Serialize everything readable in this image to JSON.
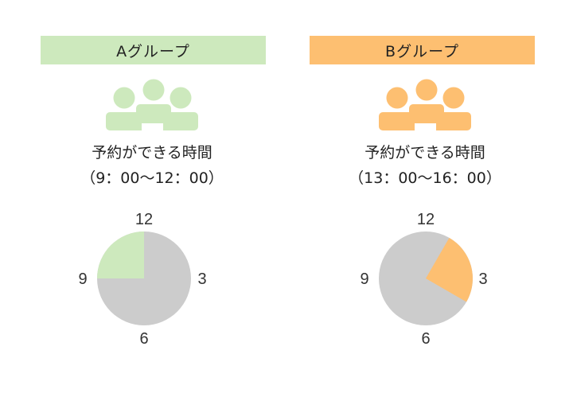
{
  "groups": [
    {
      "title": "Aグループ",
      "color": "#cde9bd",
      "icon": "people-group-icon",
      "caption": "予約ができる時間",
      "time_range": "（9：00～12：00）",
      "clock": {
        "labels": [
          "12",
          "3",
          "6",
          "9"
        ],
        "highlight_start_hour": 9,
        "highlight_end_hour": 12
      }
    },
    {
      "title": "Bグループ",
      "color": "#fdbf71",
      "icon": "people-group-icon",
      "caption": "予約ができる時間",
      "time_range": "（13：00～16：00）",
      "clock": {
        "labels": [
          "12",
          "3",
          "6",
          "9"
        ],
        "highlight_start_hour": 1,
        "highlight_end_hour": 4
      }
    }
  ],
  "clock_base_color": "#cccccc"
}
